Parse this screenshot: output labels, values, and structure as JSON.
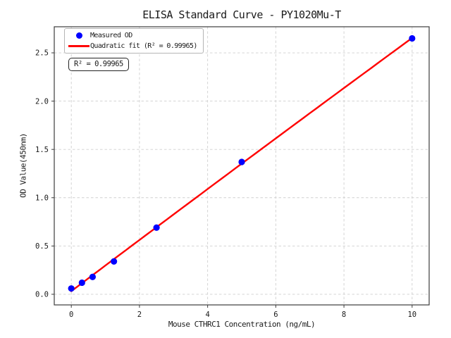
{
  "chart_data": {
    "type": "scatter",
    "title": "ELISA Standard Curve - PY1020Mu-T",
    "xlabel": "Mouse CTHRC1 Concentration (ng/mL)",
    "ylabel": "OD Value(450nm)",
    "x": [
      0,
      0.3125,
      0.625,
      1.25,
      2.5,
      5,
      10
    ],
    "series": [
      {
        "name": "Measured OD",
        "kind": "scatter",
        "color": "#0000ff",
        "values": [
          0.06,
          0.12,
          0.18,
          0.34,
          0.69,
          1.37,
          2.65
        ]
      },
      {
        "name": "Quadratic fit",
        "kind": "quadratic-fit",
        "color": "#ff0000",
        "r_squared": "0.99965"
      }
    ],
    "legend": {
      "position": "upper left",
      "entries": [
        {
          "label": "Measured OD",
          "marker": "dot"
        },
        {
          "label": "Quadratic fit (R² = 0.99965)",
          "marker": "line"
        }
      ]
    },
    "annotation": "R² = 0.99965",
    "xlim": [
      -0.5,
      10.5
    ],
    "ylim": [
      -0.11,
      2.77
    ],
    "xticks": [
      "0",
      "2",
      "4",
      "6",
      "8",
      "10"
    ],
    "yticks": [
      "0.0",
      "0.5",
      "1.0",
      "1.5",
      "2.0",
      "2.5"
    ],
    "grid": true,
    "grid_color": "#cfcfcf",
    "spine_color": "#3c3c3c"
  }
}
